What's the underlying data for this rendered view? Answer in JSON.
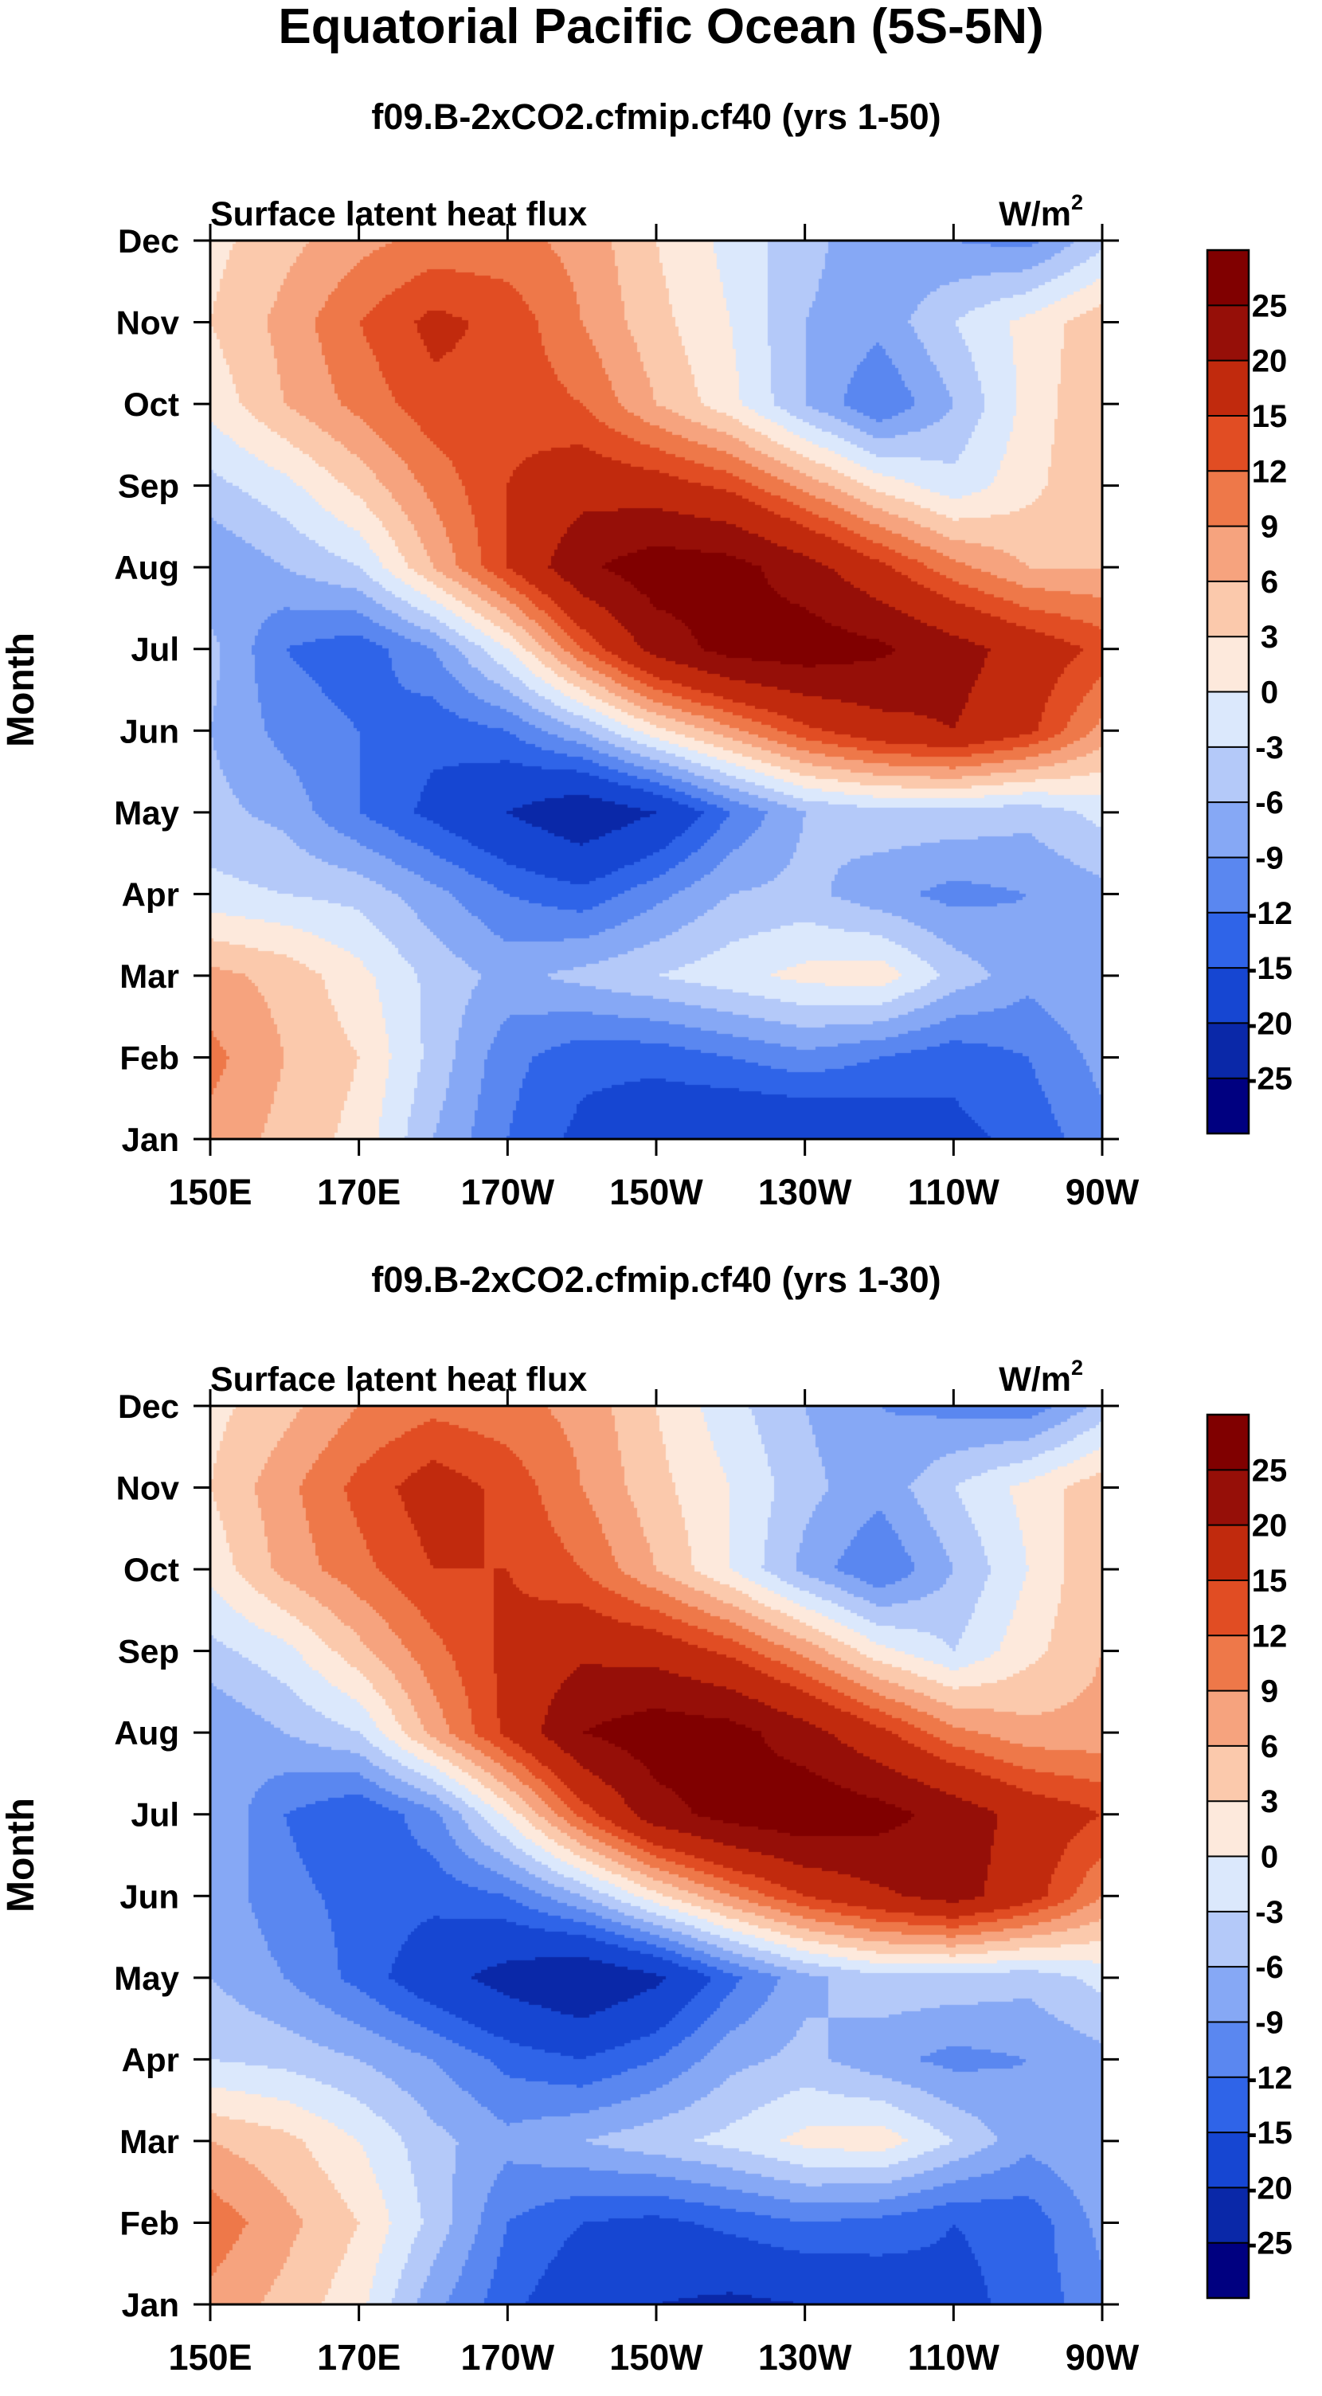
{
  "figure": {
    "title": "Equatorial Pacific Ocean (5S-5N)"
  },
  "chart_data": [
    {
      "type": "heatmap",
      "title": "f09.B-2xCO2.cfmip.cf40 (yrs 1-50)",
      "left_label": "Surface latent heat flux",
      "units_base": "W/m",
      "units_exp": "2",
      "xlabel": "",
      "ylabel": "Month",
      "xticks": [
        "150E",
        "170E",
        "170W",
        "150W",
        "130W",
        "110W",
        "90W"
      ],
      "yticks": [
        "Jan",
        "Feb",
        "Mar",
        "Apr",
        "May",
        "Jun",
        "Jul",
        "Aug",
        "Sep",
        "Oct",
        "Nov",
        "Dec"
      ],
      "xlim": [
        150,
        270
      ],
      "colorbar_levels": [
        -25,
        -20,
        -15,
        -12,
        -9,
        -6,
        -3,
        0,
        3,
        6,
        9,
        12,
        15,
        20,
        25
      ],
      "colorbar_labels": [
        "25",
        "20",
        "15",
        "12",
        "9",
        "6",
        "3",
        "0",
        "-3",
        "-6",
        "-9",
        "-12",
        "-15",
        "-20",
        "-25"
      ],
      "lon": [
        150,
        160,
        170,
        180,
        190,
        200,
        210,
        220,
        230,
        240,
        250,
        260,
        270
      ],
      "values": [
        [
          8,
          5,
          2,
          -6,
          -12,
          -16,
          -18,
          -20,
          -20,
          -18,
          -16,
          -14,
          -10
        ],
        [
          10,
          6,
          3,
          -4,
          -11,
          -14,
          -14,
          -12,
          -10,
          -12,
          -14,
          -12,
          -8
        ],
        [
          7,
          5,
          1,
          -4,
          -7,
          -5,
          -3,
          -1,
          1,
          2,
          -4,
          -8,
          -6
        ],
        [
          -2,
          -3,
          -4,
          -8,
          -12,
          -14,
          -10,
          -6,
          -5,
          -8,
          -10,
          -9,
          -7
        ],
        [
          -5,
          -7,
          -12,
          -16,
          -20,
          -24,
          -20,
          -12,
          -6,
          -4,
          -4,
          -5,
          -2
        ],
        [
          -6,
          -10,
          -12,
          -14,
          -12,
          -6,
          2,
          8,
          14,
          18,
          20,
          16,
          8
        ],
        [
          -5,
          -12,
          -14,
          -9,
          0,
          12,
          22,
          27,
          28,
          26,
          22,
          18,
          14
        ],
        [
          -9,
          -6,
          -3,
          6,
          15,
          24,
          28,
          27,
          22,
          16,
          10,
          6,
          6
        ],
        [
          -4,
          -1,
          4,
          10,
          15,
          18,
          17,
          14,
          8,
          2,
          -2,
          2,
          6
        ],
        [
          1,
          6,
          10,
          14,
          14,
          12,
          6,
          1,
          -6,
          -12,
          -6,
          1,
          6
        ],
        [
          3,
          7,
          12,
          16,
          14,
          9,
          4,
          0,
          -6,
          -8,
          -3,
          1,
          5
        ],
        [
          2,
          5,
          8,
          10,
          10,
          8,
          3,
          -1,
          -5,
          -8,
          -9,
          -10,
          -4
        ]
      ]
    },
    {
      "type": "heatmap",
      "title": "f09.B-2xCO2.cfmip.cf40 (yrs 1-30)",
      "left_label": "Surface latent heat flux",
      "units_base": "W/m",
      "units_exp": "2",
      "xlabel": "",
      "ylabel": "Month",
      "xticks": [
        "150E",
        "170E",
        "170W",
        "150W",
        "130W",
        "110W",
        "90W"
      ],
      "yticks": [
        "Jan",
        "Feb",
        "Mar",
        "Apr",
        "May",
        "Jun",
        "Jul",
        "Aug",
        "Sep",
        "Oct",
        "Nov",
        "Dec"
      ],
      "xlim": [
        150,
        270
      ],
      "colorbar_levels": [
        -25,
        -20,
        -15,
        -12,
        -9,
        -6,
        -3,
        0,
        3,
        6,
        9,
        12,
        15,
        20,
        25
      ],
      "colorbar_labels": [
        "25",
        "20",
        "15",
        "12",
        "9",
        "6",
        "3",
        "0",
        "-3",
        "-6",
        "-9",
        "-12",
        "-15",
        "-20",
        "-25"
      ],
      "lon": [
        150,
        160,
        170,
        180,
        190,
        200,
        210,
        220,
        230,
        240,
        250,
        260,
        270
      ],
      "values": [
        [
          8,
          5,
          1,
          -8,
          -14,
          -18,
          -20,
          -21,
          -20,
          -18,
          -16,
          -14,
          -10
        ],
        [
          11,
          7,
          3,
          -4,
          -12,
          -15,
          -16,
          -14,
          -12,
          -13,
          -15,
          -14,
          -8
        ],
        [
          6,
          4,
          0,
          -5,
          -8,
          -6,
          -4,
          -2,
          1,
          2,
          -3,
          -8,
          -6
        ],
        [
          -3,
          -4,
          -6,
          -9,
          -13,
          -15,
          -12,
          -7,
          -5,
          -8,
          -10,
          -9,
          -7
        ],
        [
          -6,
          -9,
          -13,
          -18,
          -22,
          -25,
          -21,
          -13,
          -7,
          -4,
          -4,
          -5,
          -2
        ],
        [
          -7,
          -11,
          -13,
          -14,
          -12,
          -6,
          2,
          9,
          15,
          19,
          22,
          17,
          9
        ],
        [
          -6,
          -12,
          -15,
          -10,
          1,
          13,
          23,
          27,
          29,
          27,
          23,
          18,
          15
        ],
        [
          -9,
          -6,
          -3,
          7,
          16,
          25,
          28,
          27,
          22,
          16,
          10,
          7,
          7
        ],
        [
          -4,
          -1,
          5,
          11,
          16,
          19,
          18,
          14,
          8,
          1,
          -3,
          2,
          6
        ],
        [
          1,
          7,
          11,
          15,
          15,
          12,
          6,
          0,
          -7,
          -12,
          -6,
          0,
          6
        ],
        [
          3,
          8,
          13,
          17,
          14,
          9,
          4,
          0,
          -5,
          -8,
          -3,
          1,
          5
        ],
        [
          2,
          5,
          9,
          11,
          10,
          8,
          3,
          -2,
          -6,
          -9,
          -10,
          -11,
          -5
        ]
      ]
    }
  ]
}
